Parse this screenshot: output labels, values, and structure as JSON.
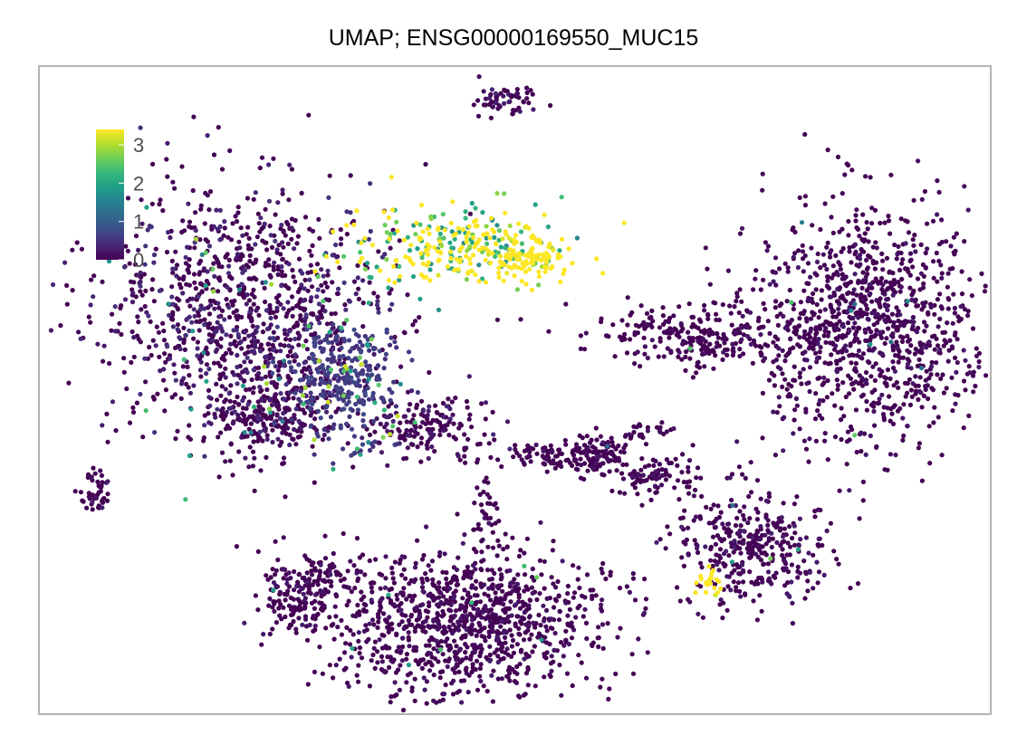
{
  "chart_data": {
    "type": "scatter",
    "title": "UMAP; ENSG00000169550_MUC15",
    "xlabel": "",
    "ylabel": "",
    "xlim": [
      0,
      1
    ],
    "ylim": [
      0,
      1
    ],
    "grid": false,
    "frame": true,
    "legend": {
      "type": "colorbar",
      "placement": "top-left",
      "min": 0,
      "max": 3.4,
      "ticks": [
        0,
        1,
        2,
        3
      ],
      "tick_labels": [
        "0",
        "1",
        "2",
        "3"
      ]
    },
    "colormap": [
      "#440154",
      "#482878",
      "#3e4989",
      "#31688e",
      "#26828e",
      "#1f9e89",
      "#35b779",
      "#6ece58",
      "#b5de2b",
      "#fde725"
    ],
    "clusters": [
      {
        "name": "top-island",
        "cx": 0.49,
        "cy": 0.948,
        "sx": 0.017,
        "sy": 0.012,
        "n": 60,
        "mean": 0.2,
        "high_frac": 0.04
      },
      {
        "name": "left-big",
        "cx": 0.22,
        "cy": 0.62,
        "sx": 0.075,
        "sy": 0.095,
        "n": 1100,
        "mean": 0.35,
        "high_frac": 0.09
      },
      {
        "name": "upper-gradient",
        "cx": 0.44,
        "cy": 0.72,
        "sx": 0.06,
        "sy": 0.03,
        "n": 280,
        "mean": 2.2,
        "high_frac": 0.6
      },
      {
        "name": "gradient-tip",
        "cx": 0.51,
        "cy": 0.7,
        "sx": 0.025,
        "sy": 0.015,
        "n": 90,
        "mean": 2.9,
        "high_frac": 0.8
      },
      {
        "name": "left-lower",
        "cx": 0.24,
        "cy": 0.46,
        "sx": 0.03,
        "sy": 0.03,
        "n": 220,
        "mean": 0.2,
        "high_frac": 0.05
      },
      {
        "name": "mid-left-cluster",
        "cx": 0.32,
        "cy": 0.52,
        "sx": 0.03,
        "sy": 0.045,
        "n": 300,
        "mean": 0.6,
        "high_frac": 0.12
      },
      {
        "name": "mid-small-1",
        "cx": 0.4,
        "cy": 0.44,
        "sx": 0.035,
        "sy": 0.025,
        "n": 170,
        "mean": 0.25,
        "high_frac": 0.04
      },
      {
        "name": "far-left-island",
        "cx": 0.058,
        "cy": 0.345,
        "sx": 0.008,
        "sy": 0.017,
        "n": 45,
        "mean": 0.2,
        "high_frac": 0.05
      },
      {
        "name": "bottom-big",
        "cx": 0.45,
        "cy": 0.14,
        "sx": 0.075,
        "sy": 0.055,
        "n": 1050,
        "mean": 0.1,
        "high_frac": 0.02
      },
      {
        "name": "bottom-left-small",
        "cx": 0.285,
        "cy": 0.19,
        "sx": 0.025,
        "sy": 0.03,
        "n": 180,
        "mean": 0.1,
        "high_frac": 0.03
      },
      {
        "name": "chain-1",
        "cx": 0.53,
        "cy": 0.4,
        "sx": 0.02,
        "sy": 0.01,
        "n": 60,
        "mean": 0.05,
        "high_frac": 0.0
      },
      {
        "name": "chain-2",
        "cx": 0.585,
        "cy": 0.4,
        "sx": 0.018,
        "sy": 0.016,
        "n": 110,
        "mean": 0.1,
        "high_frac": 0.01
      },
      {
        "name": "chain-3",
        "cx": 0.655,
        "cy": 0.37,
        "sx": 0.025,
        "sy": 0.02,
        "n": 100,
        "mean": 0.05,
        "high_frac": 0.0
      },
      {
        "name": "chain-4",
        "cx": 0.64,
        "cy": 0.435,
        "sx": 0.015,
        "sy": 0.008,
        "n": 25,
        "mean": 0.1,
        "high_frac": 0.0
      },
      {
        "name": "chain-5",
        "cx": 0.47,
        "cy": 0.31,
        "sx": 0.008,
        "sy": 0.04,
        "n": 40,
        "mean": 0.1,
        "high_frac": 0.0
      },
      {
        "name": "mid-right-arm",
        "cx": 0.69,
        "cy": 0.585,
        "sx": 0.05,
        "sy": 0.025,
        "n": 260,
        "mean": 0.05,
        "high_frac": 0.01
      },
      {
        "name": "right-big",
        "cx": 0.875,
        "cy": 0.6,
        "sx": 0.06,
        "sy": 0.09,
        "n": 1050,
        "mean": 0.1,
        "high_frac": 0.02
      },
      {
        "name": "right-lower",
        "cx": 0.75,
        "cy": 0.26,
        "sx": 0.04,
        "sy": 0.045,
        "n": 360,
        "mean": 0.15,
        "high_frac": 0.04
      },
      {
        "name": "right-lower-yellow",
        "cx": 0.705,
        "cy": 0.205,
        "sx": 0.006,
        "sy": 0.01,
        "n": 22,
        "mean": 3.2,
        "high_frac": 0.9
      }
    ]
  }
}
